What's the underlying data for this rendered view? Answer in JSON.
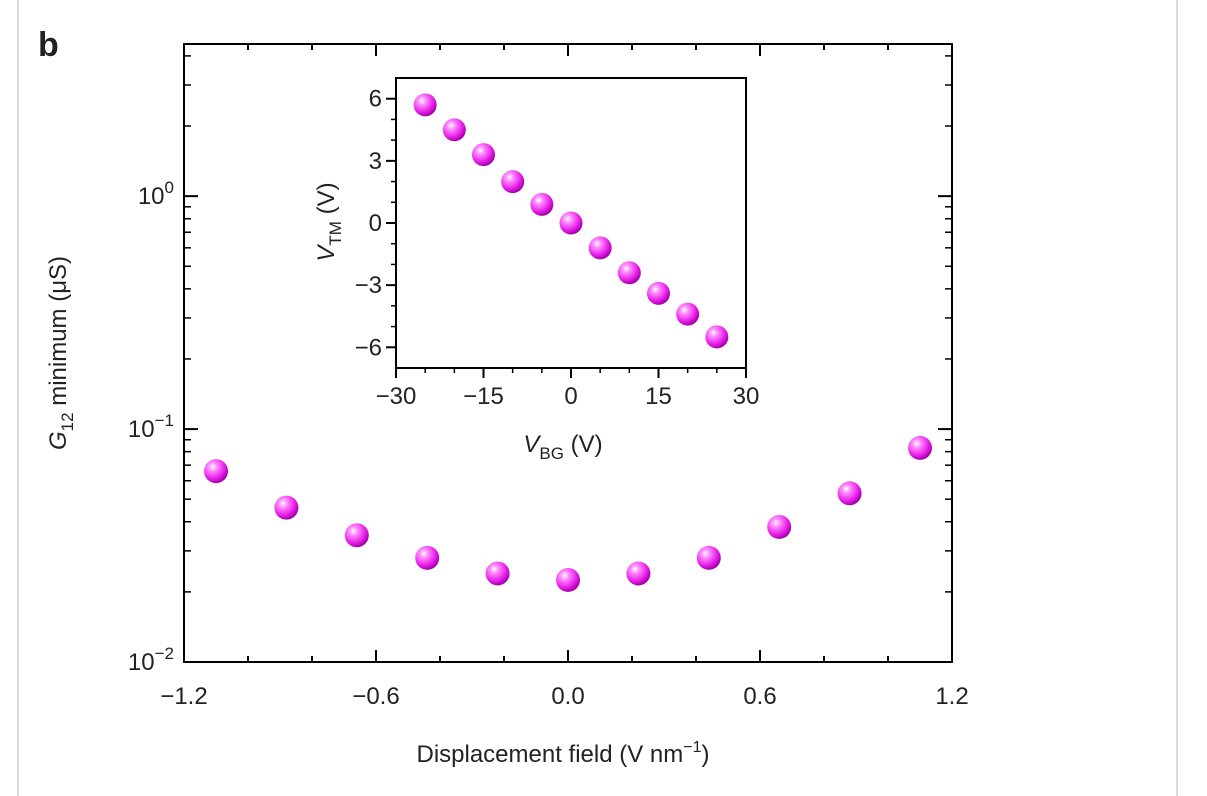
{
  "panel_label": "b",
  "colors": {
    "marker": "#e81fe8",
    "axis": "#000000"
  },
  "chart_data": [
    {
      "type": "scatter",
      "name": "main",
      "xlabel": "Displacement field (V nm−1)",
      "xlabel_parts": {
        "main": "Displacement field (V nm",
        "sup": "−1",
        "end": ")"
      },
      "ylabel": "G12 minimum (μS)",
      "ylabel_parts": {
        "italic": "G",
        "sub": "12",
        "rest": " minimum (μS)"
      },
      "xlim": [
        -1.2,
        1.2
      ],
      "ylim": [
        0.01,
        4.5
      ],
      "y_scale": "log",
      "x_ticks": [
        -1.2,
        -0.6,
        0.0,
        0.6,
        1.2
      ],
      "x_tick_labels": [
        "−1.2",
        "−0.6",
        "0.0",
        "0.6",
        "1.2"
      ],
      "y_ticks": [
        1,
        0.1,
        0.01
      ],
      "y_tick_labels": [
        {
          "base": "10",
          "exp": "0"
        },
        {
          "base": "10",
          "exp": "−1"
        },
        {
          "base": "10",
          "exp": "−2"
        }
      ],
      "x": [
        -1.1,
        -0.88,
        -0.66,
        -0.44,
        -0.22,
        0.0,
        0.22,
        0.44,
        0.66,
        0.88,
        1.1
      ],
      "y": [
        0.066,
        0.046,
        0.035,
        0.028,
        0.024,
        0.0225,
        0.024,
        0.028,
        0.038,
        0.053,
        0.083
      ]
    },
    {
      "type": "scatter",
      "name": "inset",
      "xlabel": "VBG (V)",
      "xlabel_parts": {
        "italic": "V",
        "sub": "BG",
        "rest": " (V)"
      },
      "ylabel": "VTM (V)",
      "ylabel_parts": {
        "italic": "V",
        "sub": "TM",
        "rest": " (V)"
      },
      "xlim": [
        -30,
        30
      ],
      "ylim": [
        -7,
        7
      ],
      "x_ticks": [
        -30,
        -15,
        0,
        15,
        30
      ],
      "x_tick_labels": [
        "−30",
        "−15",
        "0",
        "15",
        "30"
      ],
      "y_ticks": [
        6,
        3,
        0,
        -3,
        -6
      ],
      "y_tick_labels": [
        "6",
        "3",
        "0",
        "−3",
        "−6"
      ],
      "x": [
        -25,
        -20,
        -15,
        -10,
        -5,
        0,
        5,
        10,
        15,
        20,
        25
      ],
      "y": [
        5.7,
        4.5,
        3.3,
        2.0,
        0.9,
        0.0,
        -1.2,
        -2.4,
        -3.4,
        -4.4,
        -5.5
      ]
    }
  ]
}
